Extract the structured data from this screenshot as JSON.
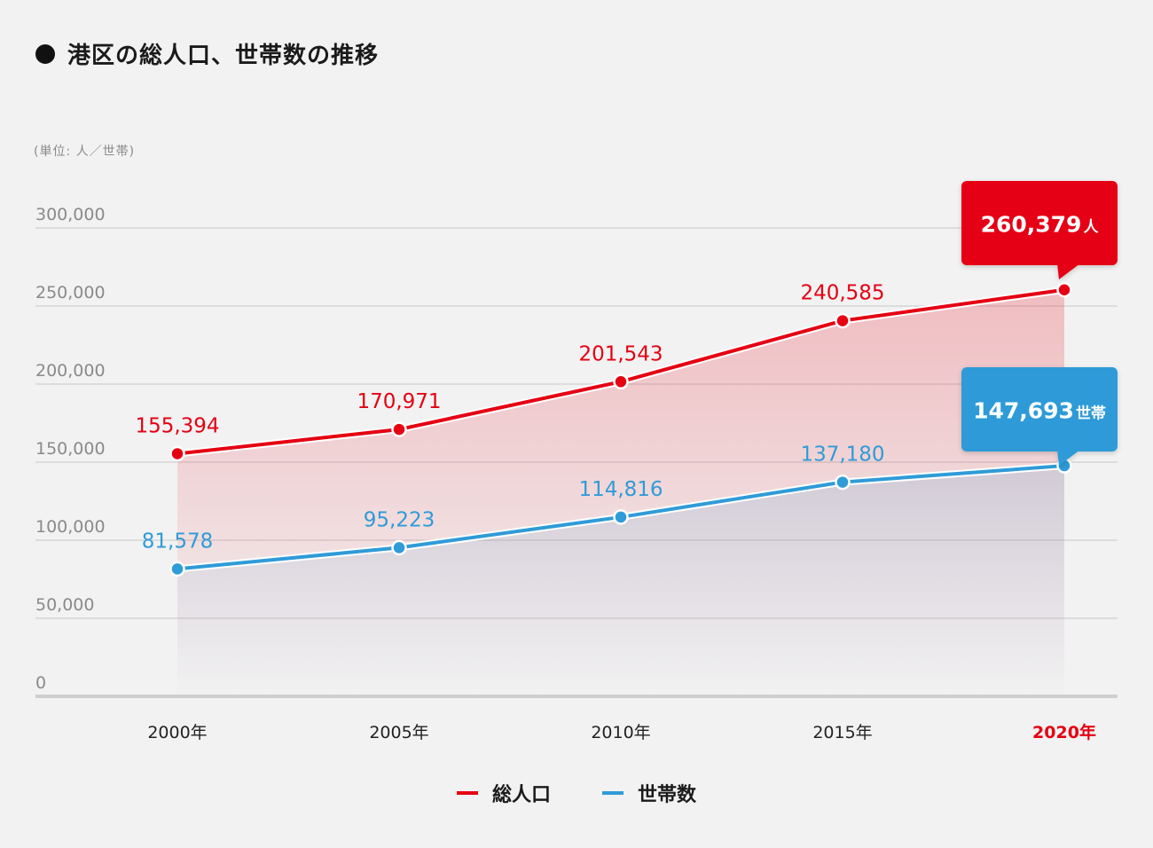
{
  "title": "港区の総人口、世帯数の推移",
  "unit_label": "(単位: 人／世帯)",
  "colors": {
    "population": "#e50012",
    "households": "#2f9bd8",
    "grid": "#d6d6d6",
    "axis": "#cfcfcf",
    "tick_text": "#8a8a8a",
    "category_text": "#222222",
    "highlight_category": "#e50012"
  },
  "chart_data": {
    "type": "line",
    "title": "港区の総人口、世帯数の推移",
    "categories": [
      "2000年",
      "2005年",
      "2010年",
      "2015年",
      "2020年"
    ],
    "highlight_category_index": 4,
    "ylim": [
      0,
      300000
    ],
    "yticks": [
      0,
      50000,
      100000,
      150000,
      200000,
      250000,
      300000
    ],
    "ytick_labels": [
      "0",
      "50,000",
      "100,000",
      "150,000",
      "200,000",
      "250,000",
      "300,000"
    ],
    "series": [
      {
        "name": "総人口",
        "color_key": "population",
        "values": [
          155394,
          170971,
          201543,
          240585,
          260379
        ],
        "labels": [
          "155,394",
          "170,971",
          "201,543",
          "240,585",
          ""
        ],
        "callout": {
          "value_text": "260,379",
          "unit_text": "人"
        }
      },
      {
        "name": "世帯数",
        "color_key": "households",
        "values": [
          81578,
          95223,
          114816,
          137180,
          147693
        ],
        "labels": [
          "81,578",
          "95,223",
          "114,816",
          "137,180",
          ""
        ],
        "callout": {
          "value_text": "147,693",
          "unit_text": "世帯"
        }
      }
    ]
  },
  "legend": [
    {
      "label": "総人口",
      "color_key": "population"
    },
    {
      "label": "世帯数",
      "color_key": "households"
    }
  ]
}
